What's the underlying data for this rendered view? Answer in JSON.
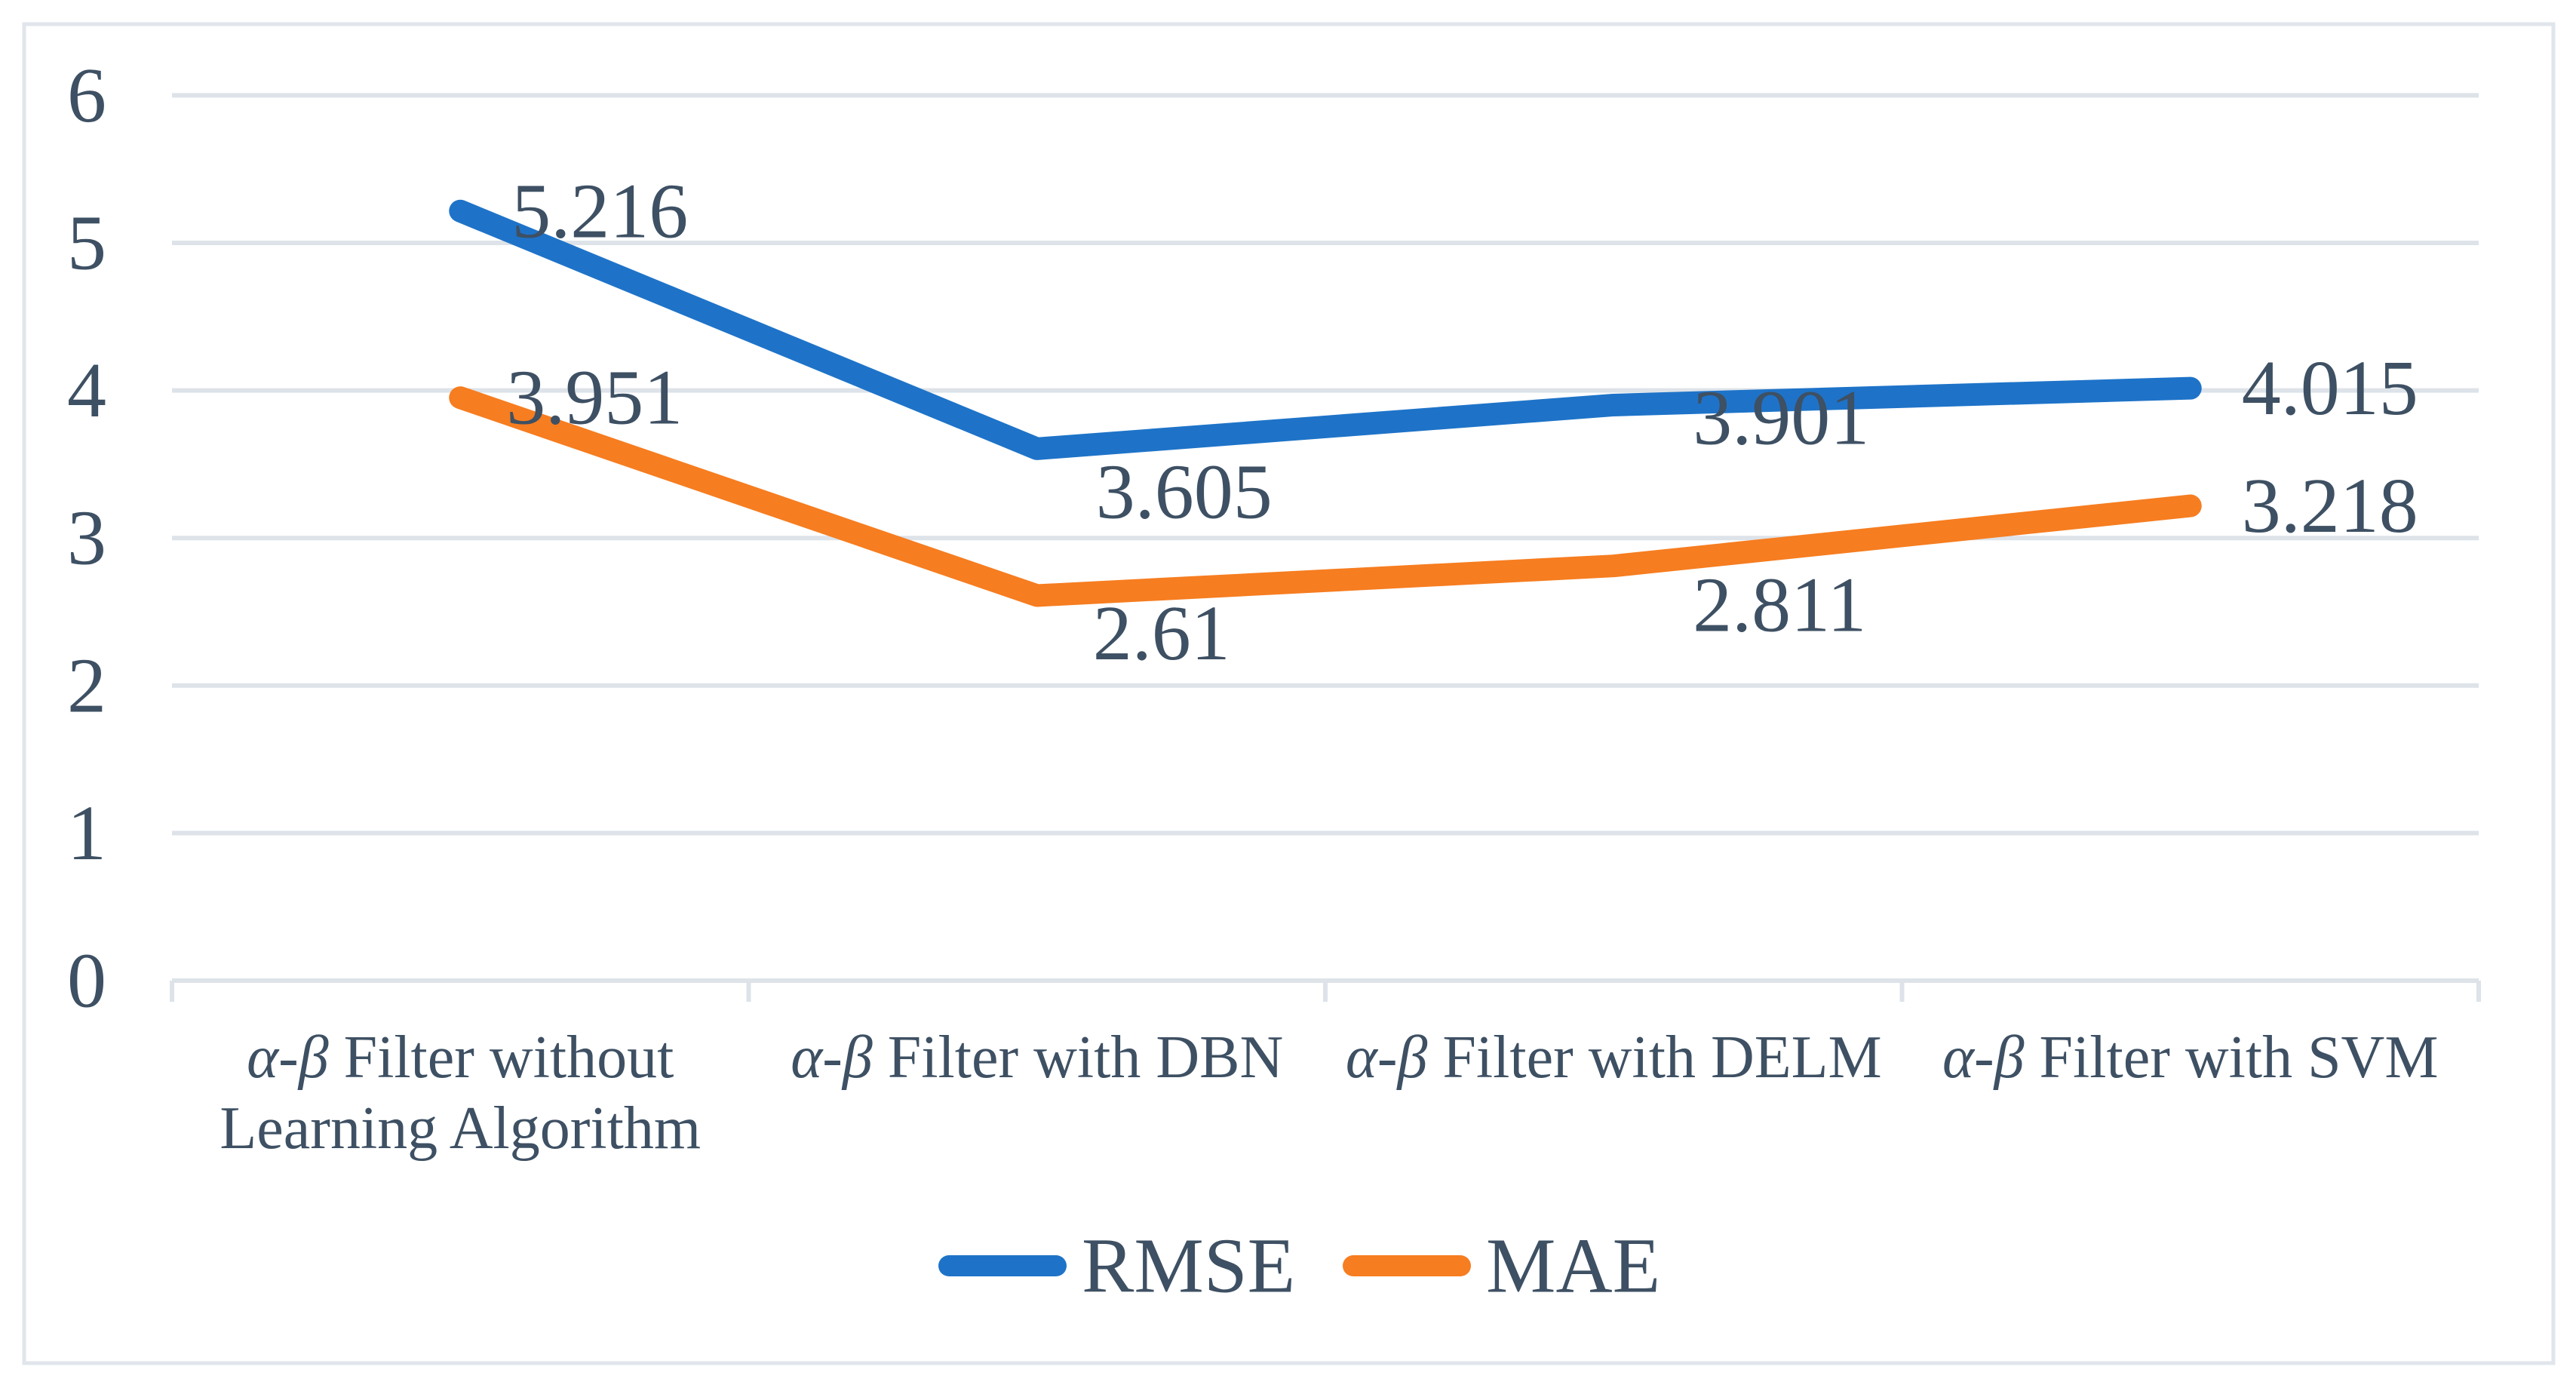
{
  "chart_data": {
    "type": "line",
    "title": "",
    "categories": [
      [
        "α-β Filter without",
        "Learning Algorithm"
      ],
      [
        "α-β Filter with DBN"
      ],
      [
        "α-β Filter with DELM"
      ],
      [
        "α-β Filter with SVM"
      ]
    ],
    "series": [
      {
        "name": "RMSE",
        "color": "#1E73C8",
        "values": [
          5.216,
          3.605,
          3.901,
          4.015
        ],
        "labels": [
          "5.216",
          "3.605",
          "3.901",
          "4.015"
        ]
      },
      {
        "name": "MAE",
        "color": "#F67D20",
        "values": [
          3.951,
          2.61,
          2.811,
          3.218
        ],
        "labels": [
          "3.951",
          "2.61",
          "2.811",
          "3.218"
        ]
      }
    ],
    "ylim": [
      0,
      6
    ],
    "yticks": [
      "0",
      "1",
      "2",
      "3",
      "4",
      "5",
      "6"
    ],
    "grid": true,
    "legend_position": "bottom",
    "legend": [
      "RMSE",
      "MAE"
    ],
    "colors": {
      "text": "#3E5063",
      "grid": "#DDE3E9",
      "frame": "#E0E6EB",
      "background": "#FFFFFF"
    }
  }
}
